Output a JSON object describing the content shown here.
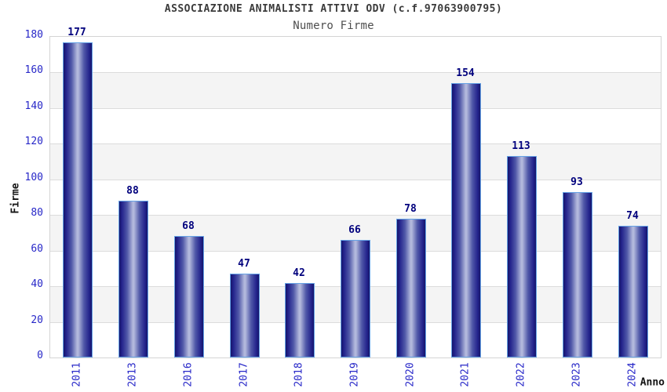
{
  "chart_data": {
    "type": "bar",
    "title": "ASSOCIAZIONE ANIMALISTI ATTIVI ODV (c.f.97063900795)",
    "subtitle": "Numero Firme",
    "xlabel": "Anno",
    "ylabel": "Firme",
    "categories": [
      "2011",
      "2013",
      "2016",
      "2017",
      "2018",
      "2019",
      "2020",
      "2021",
      "2022",
      "2023",
      "2024"
    ],
    "values": [
      177,
      88,
      68,
      47,
      42,
      66,
      78,
      154,
      113,
      93,
      74
    ],
    "ylim": [
      0,
      180
    ],
    "ytick_step": 20,
    "yticks": [
      0,
      20,
      40,
      60,
      80,
      100,
      120,
      140,
      160,
      180
    ],
    "legend": "none",
    "grid": "horizontal-bands-alternating",
    "colors": {
      "band_gray": "#f4f4f4",
      "band_white": "#ffffff",
      "gridline": "#dcdcdc",
      "plot_border": "#d4d4d4",
      "bar_edge": "#15156a",
      "bar_dark": "#23238c",
      "bar_mid": "#5058a8",
      "bar_highlight": "#b2b8dc",
      "bar_border": "#66a3e6",
      "tick_label": "#2727c8",
      "value_label": "#00007d",
      "title_color": "#3b3b3b",
      "subtitle_color": "#4e4e4e",
      "axis_title_color": "#141414"
    }
  }
}
